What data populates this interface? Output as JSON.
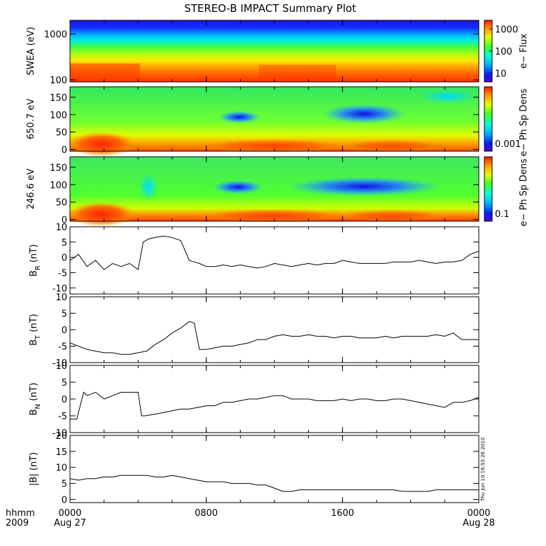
{
  "title": "STEREO-B IMPACT Summary Plot",
  "time_axis": {
    "ticks": [
      {
        "top": "0000",
        "bottom": "Aug 27",
        "hour": 0
      },
      {
        "top": "0800",
        "bottom": "",
        "hour": 8
      },
      {
        "top": "1600",
        "bottom": "",
        "hour": 16
      },
      {
        "top": "0000",
        "bottom": "Aug 28",
        "hour": 24
      }
    ],
    "left_label_top": "hhmm",
    "left_label_bottom": "2009",
    "range_hours": [
      0,
      24
    ]
  },
  "timestamp": "Thu Jun 10 16:53:26 2010",
  "colors": {
    "line": "#000000"
  },
  "chart_data": [
    {
      "type": "heatmap",
      "ylabel": "SWEA (eV)",
      "ylog": true,
      "ylim": [
        90,
        2000
      ],
      "yticks": [
        100,
        1000
      ],
      "colorbar": {
        "label": "e− Flux",
        "ticks": [
          10,
          100,
          1000
        ],
        "log": true,
        "range": [
          4,
          2500
        ]
      }
    },
    {
      "type": "heatmap",
      "ylabel": "650.7 eV",
      "ylim": [
        -5,
        180
      ],
      "yticks": [
        0,
        50,
        100,
        150
      ],
      "colorbar": {
        "label": "e− Ph Sp Dens",
        "ticks": [
          0.001
        ]
      }
    },
    {
      "type": "heatmap",
      "ylabel": "246.6 eV",
      "ylim": [
        -5,
        180
      ],
      "yticks": [
        0,
        50,
        100,
        150
      ],
      "colorbar": {
        "label": "e− Ph Sp Dens",
        "ticks": [
          0.1
        ]
      }
    },
    {
      "type": "line",
      "ylabel": "B",
      "ylabel_sub": "R",
      "yunit": "(nT)",
      "ylim": [
        -12,
        10
      ],
      "yticks": [
        -10,
        -5,
        0,
        5,
        10
      ],
      "x": [
        0,
        0.5,
        1,
        1.5,
        2,
        2.5,
        3,
        3.5,
        4,
        4.3,
        4.6,
        5,
        5.5,
        6,
        6.5,
        7,
        7.3,
        7.6,
        8,
        8.5,
        9,
        9.5,
        10,
        10.5,
        11,
        11.5,
        12,
        12.5,
        13,
        13.5,
        14,
        14.5,
        15,
        15.5,
        16,
        16.5,
        17,
        17.5,
        18,
        18.5,
        19,
        19.5,
        20,
        20.5,
        21,
        21.5,
        22,
        22.5,
        23,
        23.5,
        24
      ],
      "values": [
        -1,
        1,
        -3,
        -1,
        -4,
        -2,
        -3,
        -2,
        -4,
        5,
        6,
        6.5,
        7,
        6.5,
        5.5,
        -1,
        -1.5,
        -2,
        -3,
        -3,
        -2.5,
        -3,
        -2.5,
        -3,
        -3.5,
        -3,
        -2,
        -2.5,
        -3,
        -2.5,
        -2,
        -2.5,
        -2,
        -2,
        -1,
        -1.5,
        -2,
        -2,
        -2,
        -2,
        -1.5,
        -1.5,
        -1.5,
        -1,
        -1.5,
        -2,
        -1.5,
        -1.5,
        -1,
        1,
        2
      ]
    },
    {
      "type": "line",
      "ylabel": "B",
      "ylabel_sub": "T",
      "yunit": "(nT)",
      "ylim": [
        -10,
        10
      ],
      "yticks": [
        -10,
        -5,
        0,
        5,
        10
      ],
      "x": [
        0,
        0.5,
        1,
        1.5,
        2,
        2.5,
        3,
        3.5,
        4,
        4.5,
        5,
        5.5,
        6,
        6.5,
        7,
        7.3,
        7.6,
        8,
        8.5,
        9,
        9.5,
        10,
        10.5,
        11,
        11.5,
        12,
        12.5,
        13,
        13.5,
        14,
        14.5,
        15,
        15.5,
        16,
        16.5,
        17,
        17.5,
        18,
        18.5,
        19,
        19.5,
        20,
        20.5,
        21,
        21.5,
        22,
        22.5,
        23,
        23.5,
        24
      ],
      "values": [
        -4,
        -5,
        -6,
        -6.5,
        -7,
        -7,
        -7.5,
        -7.5,
        -7,
        -6.5,
        -4.5,
        -3,
        -1,
        0.5,
        2.5,
        2,
        -6,
        -6,
        -5.5,
        -5,
        -5,
        -4.5,
        -4,
        -3,
        -3,
        -2,
        -1.5,
        -2,
        -2,
        -1.5,
        -2,
        -2,
        -2.5,
        -2,
        -2,
        -2.5,
        -2.5,
        -2.5,
        -2,
        -2.5,
        -2,
        -2,
        -2,
        -2,
        -1.5,
        -2,
        -1,
        -3,
        -3,
        -3
      ]
    },
    {
      "type": "line",
      "ylabel": "B",
      "ylabel_sub": "N",
      "yunit": "(nT)",
      "ylim": [
        -10,
        10
      ],
      "yticks": [
        -10,
        -5,
        0,
        5,
        10
      ],
      "x": [
        0,
        0.4,
        0.8,
        1,
        1.5,
        2,
        2.5,
        3,
        3.5,
        4,
        4.2,
        4.4,
        5,
        5.5,
        6,
        6.5,
        7,
        7.5,
        8,
        8.5,
        9,
        9.5,
        10,
        10.5,
        11,
        11.5,
        12,
        12.5,
        13,
        13.5,
        14,
        14.5,
        15,
        15.5,
        16,
        16.5,
        17,
        17.5,
        18,
        18.5,
        19,
        19.5,
        20,
        20.5,
        21,
        21.5,
        22,
        22.5,
        23,
        23.5,
        24
      ],
      "values": [
        -6,
        -6,
        2,
        1,
        2,
        0,
        1,
        2,
        2,
        2,
        -5,
        -5,
        -4.5,
        -4,
        -3.5,
        -3,
        -3,
        -2.5,
        -2,
        -2,
        -1,
        -1,
        -0.5,
        0,
        0,
        0.5,
        1,
        1,
        0,
        0,
        0,
        -0.5,
        -0.5,
        -0.5,
        0,
        -0.5,
        0,
        0,
        -0.5,
        -0.5,
        0,
        0,
        -0.5,
        -1,
        -1.5,
        -2,
        -2.5,
        -1,
        -1,
        -0.5,
        0.5
      ]
    },
    {
      "type": "line",
      "ylabel": "|B|",
      "ylabel_sub": "",
      "yunit": "(nT)",
      "ylim": [
        -1,
        20
      ],
      "yticks": [
        0,
        5,
        10,
        15,
        20
      ],
      "x": [
        0,
        0.5,
        1,
        1.5,
        2,
        2.5,
        3,
        3.5,
        4,
        4.5,
        5,
        5.5,
        6,
        6.5,
        7,
        7.5,
        8,
        8.5,
        9,
        9.5,
        10,
        10.5,
        11,
        11.5,
        12,
        12.5,
        13,
        13.5,
        14,
        14.5,
        15,
        15.5,
        16,
        16.5,
        17,
        17.5,
        18,
        18.5,
        19,
        19.5,
        20,
        20.5,
        21,
        21.5,
        22,
        22.5,
        23,
        23.5,
        24
      ],
      "values": [
        6.5,
        6,
        6.5,
        6.5,
        7,
        7,
        7.5,
        7.5,
        7.5,
        7.5,
        7,
        7,
        7.5,
        7,
        6.5,
        6,
        5.5,
        5.5,
        5.5,
        5,
        5,
        5,
        4.5,
        4.5,
        3.5,
        2.5,
        2.5,
        3,
        3,
        3,
        3,
        3,
        3,
        3,
        3,
        3,
        3,
        3,
        3,
        2.5,
        2.5,
        2.5,
        2.5,
        3,
        3,
        3,
        3,
        3,
        3
      ]
    }
  ]
}
